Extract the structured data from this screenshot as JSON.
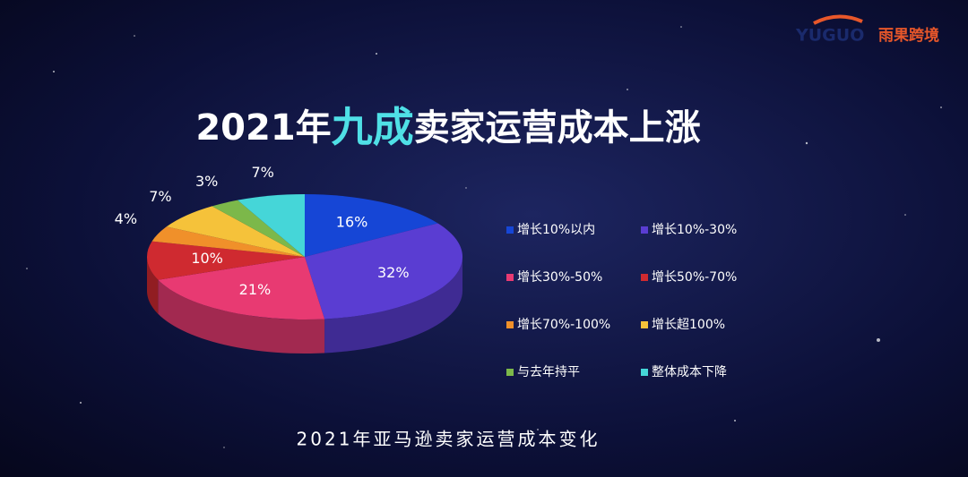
{
  "logo": {
    "brand": "YUGUO",
    "name": "雨果跨境"
  },
  "chart_data": {
    "type": "pie3d",
    "title": [
      "2021年",
      "九成",
      "卖家运营成本上涨"
    ],
    "caption": "2021年亚马逊卖家运营成本变化",
    "categories": [
      "增长10%以内",
      "增长10%-30%",
      "增长30%-50%",
      "增长50%-70%",
      "增长70%-100%",
      "增长超100%",
      "与去年持平",
      "整体成本下降"
    ],
    "values": [
      16,
      32,
      21,
      10,
      4,
      7,
      3,
      7
    ],
    "value_labels": [
      "16%",
      "32%",
      "21%",
      "10%",
      "4%",
      "7%",
      "3%",
      "7%"
    ],
    "colors": [
      "#1646d6",
      "#5a3dd2",
      "#e83a72",
      "#cf2a30",
      "#f0902a",
      "#f5c23a",
      "#7cb84a",
      "#45d6d8"
    ],
    "title_highlight_color": "#4fe0e6"
  }
}
